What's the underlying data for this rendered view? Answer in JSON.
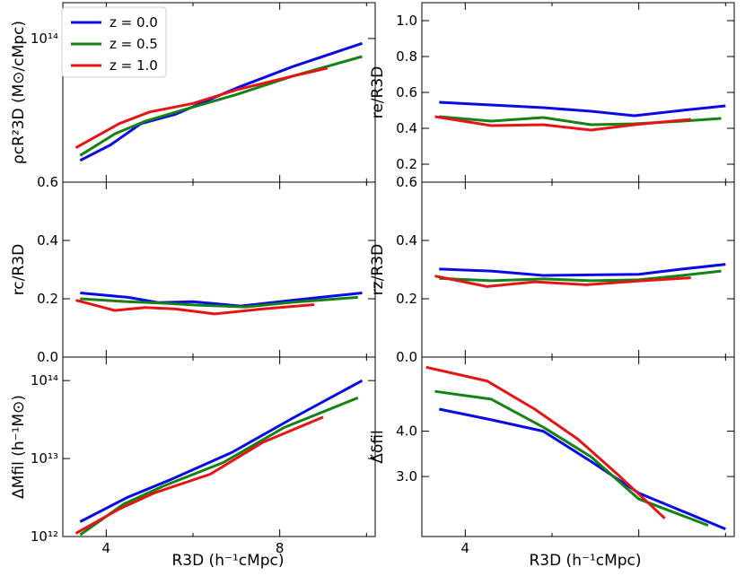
{
  "legend": [
    {
      "label": "z = 0.0",
      "color": "#0a0ae6"
    },
    {
      "label": "z = 0.5",
      "color": "#148214"
    },
    {
      "label": "z = 1.0",
      "color": "#e61414"
    }
  ],
  "xaxis": {
    "bottom_left_label": "R3D (h⁻¹cMpc)",
    "bottom_right_label": "R3D (h⁻¹cMpc)",
    "left_ticks": [
      "4",
      "8"
    ],
    "right_ticks": [
      "4"
    ]
  },
  "chart_data": [
    {
      "id": "rho",
      "type": "line",
      "ylabel": "ρcR²3D (M⊙/cMpc)",
      "yscale": "log",
      "xlim": [
        3.0,
        10.2
      ],
      "ylim": [
        30000000000000.0,
        135000000000000.0
      ],
      "yticks": [
        {
          "value": 100000000000000.0,
          "label": "10¹⁴"
        }
      ],
      "series": [
        {
          "name": "z = 0.0",
          "x": [
            3.4,
            4.1,
            4.8,
            5.6,
            7.0,
            8.3,
            9.9
          ],
          "y": [
            36000000000000.0,
            41000000000000.0,
            49000000000000.0,
            53000000000000.0,
            66000000000000.0,
            79000000000000.0,
            96000000000000.0
          ]
        },
        {
          "name": "z = 0.5",
          "x": [
            3.4,
            4.2,
            4.9,
            5.7,
            7.0,
            8.3,
            9.9
          ],
          "y": [
            37500000000000.0,
            45000000000000.0,
            50000000000000.0,
            54500000000000.0,
            62500000000000.0,
            73000000000000.0,
            86000000000000.0
          ]
        },
        {
          "name": "z = 1.0",
          "x": [
            3.3,
            4.3,
            5.0,
            6.0,
            7.0,
            8.3,
            9.1
          ],
          "y": [
            40000000000000.0,
            49000000000000.0,
            54000000000000.0,
            58000000000000.0,
            65000000000000.0,
            73000000000000.0,
            78000000000000.0
          ]
        }
      ]
    },
    {
      "id": "re",
      "type": "line",
      "ylabel": "re/R3D",
      "yscale": "linear",
      "xlim": [
        3.0,
        10.2
      ],
      "ylim": [
        0.1,
        1.1
      ],
      "yticks": [
        {
          "value": 0.2,
          "label": "0.2"
        },
        {
          "value": 0.4,
          "label": "0.4"
        },
        {
          "value": 0.6,
          "label": "0.6"
        },
        {
          "value": 0.8,
          "label": "0.8"
        },
        {
          "value": 1.0,
          "label": "1.0"
        }
      ],
      "series": [
        {
          "name": "z = 0.0",
          "x": [
            3.4,
            4.6,
            5.8,
            6.9,
            7.9,
            9.0,
            10.0
          ],
          "y": [
            0.545,
            0.53,
            0.515,
            0.495,
            0.47,
            0.5,
            0.525
          ]
        },
        {
          "name": "z = 0.5",
          "x": [
            3.4,
            4.6,
            5.8,
            6.9,
            7.9,
            9.0,
            9.9
          ],
          "y": [
            0.465,
            0.44,
            0.46,
            0.42,
            0.425,
            0.44,
            0.455
          ]
        },
        {
          "name": "z = 1.0",
          "x": [
            3.3,
            4.6,
            5.8,
            6.9,
            7.9,
            9.2
          ],
          "y": [
            0.465,
            0.415,
            0.42,
            0.39,
            0.42,
            0.45
          ]
        }
      ]
    },
    {
      "id": "rc",
      "type": "line",
      "ylabel": "rc/R3D",
      "yscale": "linear",
      "xlim": [
        3.0,
        10.2
      ],
      "ylim": [
        0.0,
        0.6
      ],
      "yticks": [
        {
          "value": 0.0,
          "label": "0.0"
        },
        {
          "value": 0.2,
          "label": "0.2"
        },
        {
          "value": 0.4,
          "label": "0.4"
        },
        {
          "value": 0.6,
          "label": "0.6"
        }
      ],
      "series": [
        {
          "name": "z = 0.0",
          "x": [
            3.4,
            4.5,
            5.2,
            6.0,
            7.1,
            8.3,
            9.9
          ],
          "y": [
            0.22,
            0.205,
            0.187,
            0.19,
            0.175,
            0.195,
            0.22
          ]
        },
        {
          "name": "z = 0.5",
          "x": [
            3.4,
            4.5,
            5.3,
            6.1,
            7.2,
            8.3,
            9.8
          ],
          "y": [
            0.2,
            0.19,
            0.185,
            0.178,
            0.172,
            0.188,
            0.205
          ]
        },
        {
          "name": "z = 1.0",
          "x": [
            3.3,
            4.2,
            4.9,
            5.6,
            6.5,
            7.6,
            8.8
          ],
          "y": [
            0.195,
            0.16,
            0.17,
            0.165,
            0.148,
            0.165,
            0.18
          ]
        }
      ]
    },
    {
      "id": "rz",
      "type": "line",
      "ylabel": "rz/R3D",
      "yscale": "linear",
      "xlim": [
        3.0,
        10.2
      ],
      "ylim": [
        0.0,
        0.6
      ],
      "yticks": [
        {
          "value": 0.0,
          "label": "0.0"
        },
        {
          "value": 0.2,
          "label": "0.2"
        },
        {
          "value": 0.4,
          "label": "0.4"
        },
        {
          "value": 0.6,
          "label": "0.6"
        }
      ],
      "series": [
        {
          "name": "z = 0.0",
          "x": [
            3.4,
            4.6,
            5.8,
            6.9,
            8.0,
            9.0,
            10.0
          ],
          "y": [
            0.302,
            0.295,
            0.28,
            0.282,
            0.284,
            0.302,
            0.318
          ]
        },
        {
          "name": "z = 0.5",
          "x": [
            3.4,
            4.6,
            5.8,
            6.9,
            8.0,
            9.0,
            9.9
          ],
          "y": [
            0.27,
            0.262,
            0.268,
            0.262,
            0.265,
            0.28,
            0.295
          ]
        },
        {
          "name": "z = 1.0",
          "x": [
            3.3,
            4.5,
            5.6,
            6.8,
            7.9,
            9.2
          ],
          "y": [
            0.278,
            0.242,
            0.258,
            0.248,
            0.26,
            0.272
          ]
        }
      ]
    },
    {
      "id": "mfil",
      "type": "line",
      "ylabel": "ΔMfil (h⁻¹M⊙)",
      "yscale": "log",
      "xlim": [
        3.0,
        10.2
      ],
      "ylim": [
        1000000000000.0,
        200000000000000.0
      ],
      "yticks": [
        {
          "value": 1000000000000.0,
          "label": "10¹²"
        },
        {
          "value": 10000000000000.0,
          "label": "10¹³"
        },
        {
          "value": 100000000000000.0,
          "label": "10¹⁴"
        }
      ],
      "series": [
        {
          "name": "z = 0.0",
          "x": [
            3.4,
            4.5,
            5.5,
            6.9,
            8.3,
            9.9
          ],
          "y": [
            1550000000000.0,
            3200000000000.0,
            5400000000000.0,
            12000000000000.0,
            33000000000000.0,
            100000000000000.0
          ]
        },
        {
          "name": "z = 0.5",
          "x": [
            3.4,
            4.4,
            5.3,
            6.7,
            8.1,
            9.8
          ],
          "y": [
            1050000000000.0,
            2600000000000.0,
            4400000000000.0,
            8900000000000.0,
            25000000000000.0,
            60000000000000.0
          ]
        },
        {
          "name": "z = 1.0",
          "x": [
            3.3,
            4.3,
            5.1,
            6.4,
            7.6,
            9.0
          ],
          "y": [
            1100000000000.0,
            2250000000000.0,
            3600000000000.0,
            6300000000000.0,
            16000000000000.0,
            34000000000000.0
          ]
        }
      ]
    },
    {
      "id": "delta",
      "type": "line",
      "ylabel": "Δ̃δfil",
      "yscale": "log",
      "xlim": [
        3.0,
        10.2
      ],
      "ylim": [
        2.05,
        6.4
      ],
      "yticks": [
        {
          "value": 3.0,
          "label": "3.0"
        },
        {
          "value": 4.0,
          "label": "4.0"
        }
      ],
      "series": [
        {
          "name": "z = 0.0",
          "x": [
            3.4,
            4.6,
            5.8,
            6.9,
            8.0,
            10.0
          ],
          "y": [
            4.6,
            4.3,
            4.0,
            3.3,
            2.7,
            2.15
          ]
        },
        {
          "name": "z = 0.5",
          "x": [
            3.3,
            4.6,
            5.8,
            6.9,
            8.0,
            9.6
          ],
          "y": [
            5.15,
            4.9,
            4.1,
            3.4,
            2.6,
            2.2
          ]
        },
        {
          "name": "z = 1.0",
          "x": [
            3.1,
            4.5,
            5.6,
            6.6,
            7.5,
            8.6
          ],
          "y": [
            6.0,
            5.5,
            4.6,
            3.8,
            3.05,
            2.3
          ]
        }
      ]
    }
  ]
}
